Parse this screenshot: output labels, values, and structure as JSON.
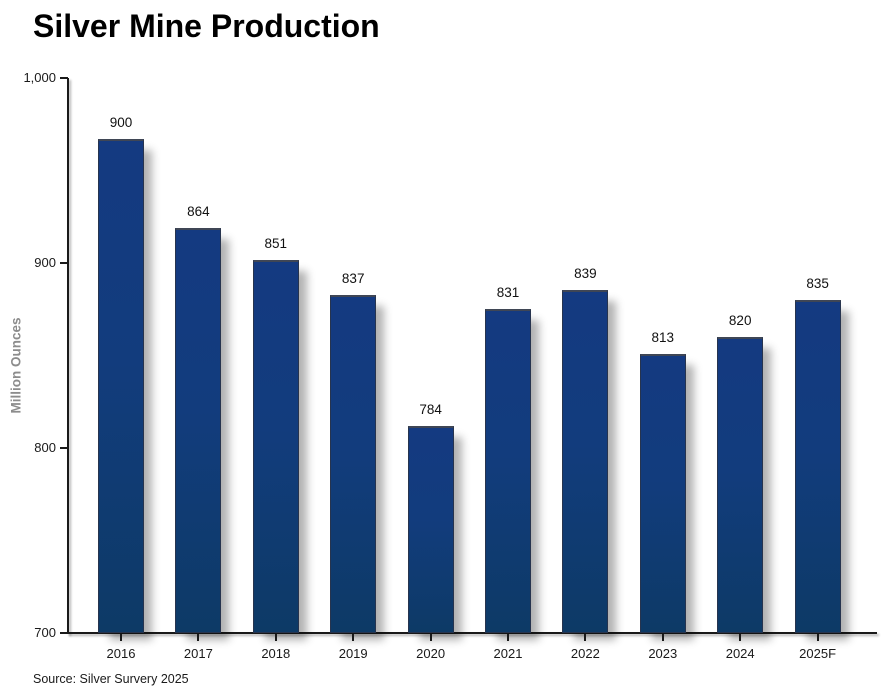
{
  "chart_data": {
    "type": "bar",
    "title": "Silver Mine Production",
    "ylabel": "Million Ounces",
    "categories": [
      "2016",
      "2017",
      "2018",
      "2019",
      "2020",
      "2021",
      "2022",
      "2023",
      "2024",
      "2025F"
    ],
    "values": [
      900,
      864,
      851,
      837,
      784,
      831,
      839,
      813,
      820,
      835
    ],
    "ylim": [
      700,
      1000
    ],
    "yticks": [
      {
        "label": "1,000",
        "value": 1000
      },
      {
        "label": "900",
        "value": 900
      },
      {
        "label": "800",
        "value": 800
      },
      {
        "label": "700",
        "value": 700
      }
    ],
    "grid": false,
    "legend": null,
    "bar_color_top": "#143a81",
    "bar_color_bottom": "#0d3a66",
    "source": "Source: Silver Survery 2025"
  }
}
